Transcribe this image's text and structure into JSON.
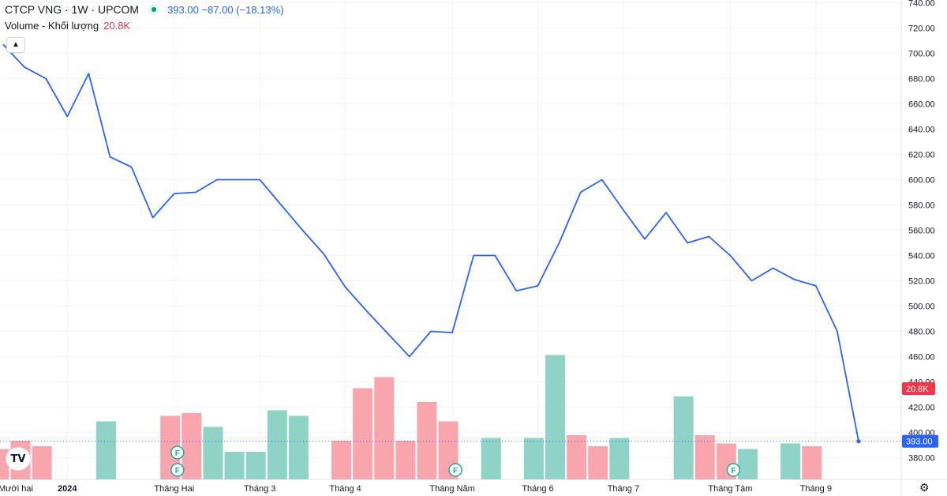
{
  "header": {
    "symbol": "CTCP VNG · 1W · UPCOM",
    "quote": "393.00 −87.00 (−18.13%)",
    "volume_label": "Volume - Khối lượng",
    "volume_value": "20.8K",
    "collapse_icon": "chevron-up-icon",
    "logo_text": "TV",
    "settings_icon": "gear-icon"
  },
  "colors": {
    "line": "#2962ff",
    "volume_up": "#8fd3c6",
    "volume_down": "#f8a5ad",
    "last_price_bg": "#2962ff",
    "last_volume_bg": "#f23645",
    "earnings_marker": "#22ab94"
  },
  "chart_data": {
    "type": "line",
    "title": "CTCP VNG · 1W · UPCOM",
    "xlabel": "",
    "ylabel": "",
    "ylim": [
      360,
      740
    ],
    "grid": true,
    "y_ticks": [
      "740.00",
      "720.00",
      "700.00",
      "680.00",
      "660.00",
      "640.00",
      "620.00",
      "600.00",
      "580.00",
      "560.00",
      "540.00",
      "520.00",
      "500.00",
      "480.00",
      "460.00",
      "440.00",
      "420.00",
      "400.00",
      "380.00"
    ],
    "x_ticks": [
      {
        "label": "Mười hai",
        "bold": false,
        "week": -1
      },
      {
        "label": "2024",
        "bold": true,
        "week": 3
      },
      {
        "label": "Tháng Hai",
        "bold": false,
        "week": 8
      },
      {
        "label": "Tháng 3",
        "bold": false,
        "week": 12
      },
      {
        "label": "Tháng 4",
        "bold": false,
        "week": 16
      },
      {
        "label": "Tháng Năm",
        "bold": false,
        "week": 21
      },
      {
        "label": "Tháng 6",
        "bold": false,
        "week": 25
      },
      {
        "label": "Tháng 7",
        "bold": false,
        "week": 29
      },
      {
        "label": "Tháng Tám",
        "bold": false,
        "week": 34
      },
      {
        "label": "Tháng 9",
        "bold": false,
        "week": 38
      }
    ],
    "series": [
      {
        "values": [
          707,
          689,
          680,
          650,
          684,
          618,
          610,
          570,
          589,
          590,
          600,
          600,
          600,
          580,
          560,
          541,
          515,
          496,
          478,
          460,
          480,
          479,
          540,
          540,
          512,
          516,
          550,
          590,
          600,
          576,
          553,
          574,
          550,
          555,
          540,
          520,
          530,
          521,
          516,
          480,
          393
        ]
      }
    ],
    "last_price_label": "393.00",
    "volume": {
      "values": [
        11,
        14,
        12,
        null,
        null,
        21,
        null,
        null,
        23,
        24,
        19,
        10,
        10,
        25,
        23,
        null,
        14,
        33,
        37,
        14,
        28,
        21,
        null,
        15,
        null,
        15,
        45,
        16,
        12,
        15,
        null,
        null,
        30,
        16,
        13,
        11,
        null,
        13,
        12,
        null,
        null,
        null,
        null,
        null,
        null,
        8,
        24,
        29
      ],
      "direction": [
        "d",
        "d",
        "d",
        null,
        null,
        "u",
        null,
        null,
        "d",
        "d",
        "u",
        "u",
        "u",
        "u",
        "u",
        "d",
        "d",
        "d",
        "d",
        "d",
        "d",
        "d",
        null,
        "u",
        null,
        "u",
        "u",
        "d",
        "d",
        "u",
        null,
        null,
        "u",
        "d",
        "d",
        "u",
        null,
        "u",
        "d",
        null,
        null,
        null,
        null,
        null,
        null,
        "d",
        "d",
        "d"
      ],
      "last_volume_label": "20.8K"
    },
    "earnings_markers": [
      {
        "text": "F",
        "week": 8,
        "stack": 2
      },
      {
        "text": "F",
        "week": 8,
        "stack": 1
      },
      {
        "text": "F",
        "week": 21,
        "stack": 1
      },
      {
        "text": "F",
        "week": 34,
        "stack": 1
      }
    ]
  }
}
